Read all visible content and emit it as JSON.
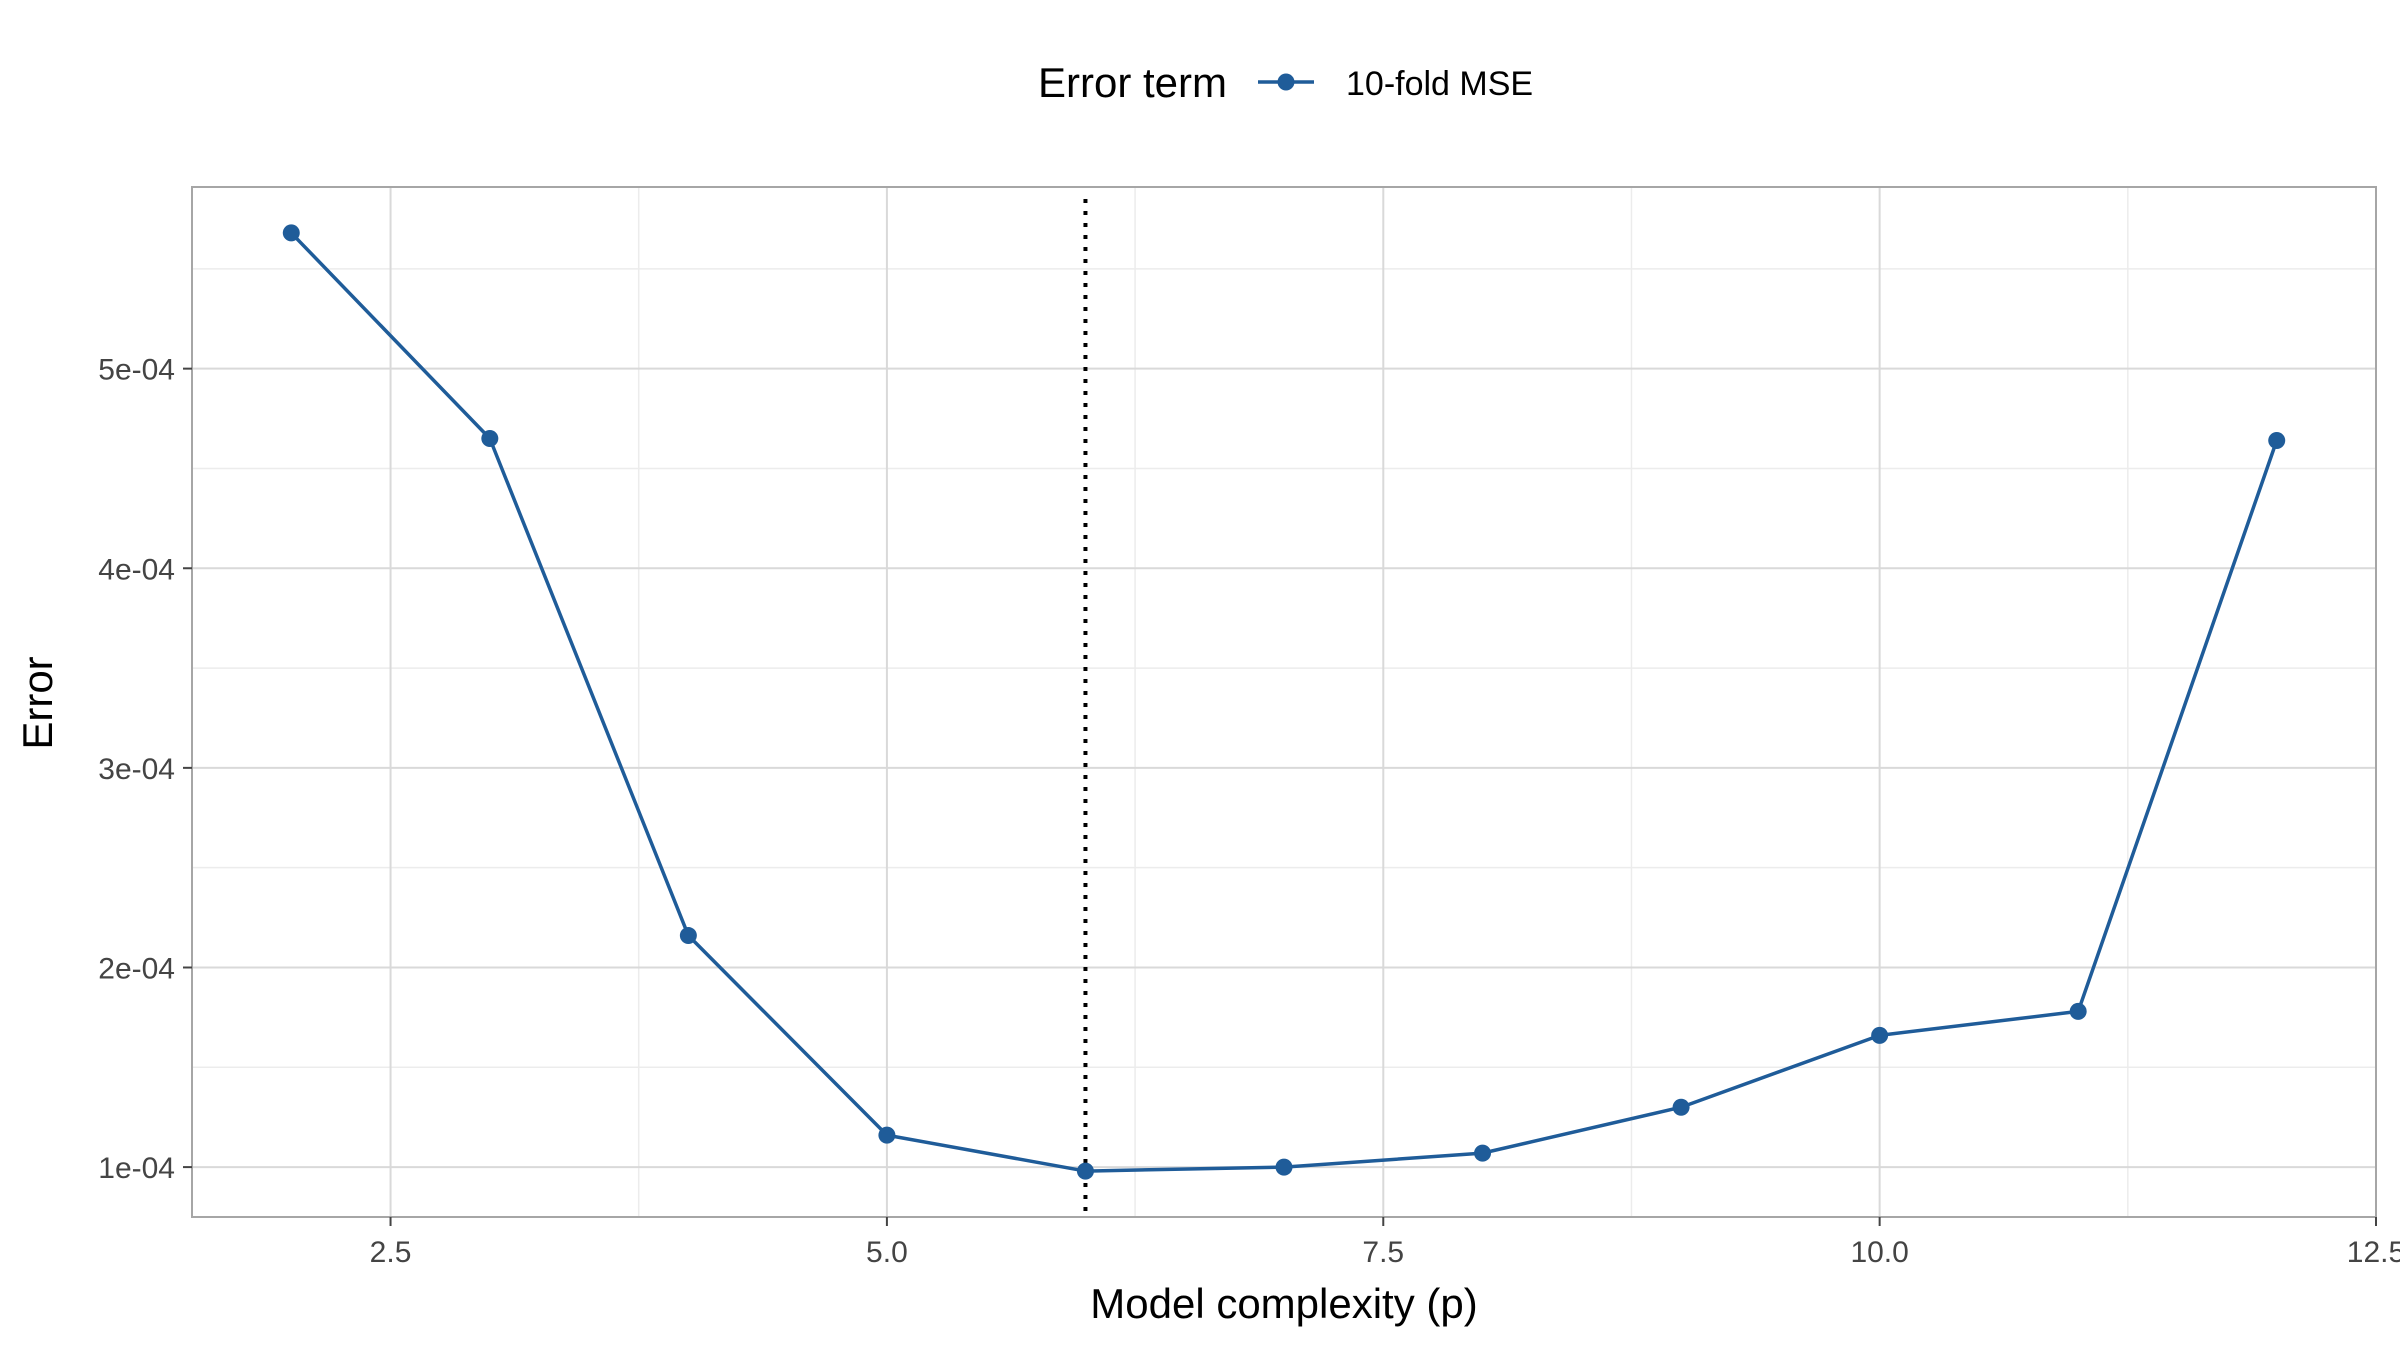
{
  "colors": {
    "series": "#1f5c99",
    "grid_major": "#d9d9d9",
    "grid_minor": "#ececec",
    "panel_border": "#a6a6a6",
    "vline": "#000000"
  },
  "legend": {
    "title": "Error term",
    "items": [
      "10-fold MSE"
    ]
  },
  "chart_data": {
    "type": "line",
    "title": "",
    "xlabel": "Model complexity (p)",
    "ylabel": "Error",
    "xlim": [
      1.5,
      12.5
    ],
    "ylim": [
      7.5e-05,
      0.000591
    ],
    "x_ticks": [
      2.5,
      5.0,
      7.5,
      10.0,
      12.5
    ],
    "x_tick_labels": [
      "2.5",
      "5.0",
      "7.5",
      "10.0",
      "12.5"
    ],
    "y_ticks": [
      0.0001,
      0.0002,
      0.0003,
      0.0004,
      0.0005
    ],
    "y_tick_labels": [
      "1e-04",
      "2e-04",
      "3e-04",
      "4e-04",
      "5e-04"
    ],
    "grid": true,
    "legend_position": "top",
    "vline_x": 6,
    "series": [
      {
        "name": "10-fold MSE",
        "x": [
          2,
          3,
          4,
          5,
          6,
          7,
          8,
          9,
          10,
          11,
          12
        ],
        "y": [
          0.000568,
          0.000465,
          0.000216,
          0.000116,
          9.8e-05,
          0.0001,
          0.000107,
          0.00013,
          0.000166,
          0.000178,
          0.000464
        ]
      }
    ]
  }
}
